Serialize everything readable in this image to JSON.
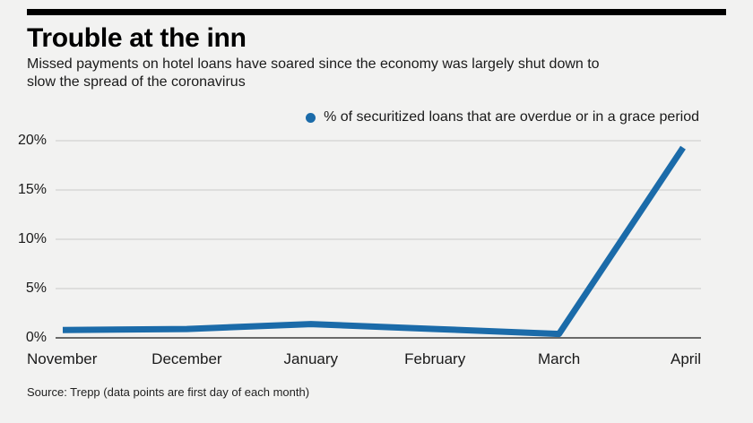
{
  "header": {
    "title": "Trouble at the inn",
    "subtitle_lines": [
      "Missed payments on hotel loans have soared since the economy was largely shut down to",
      "slow the spread of the coronavirus"
    ]
  },
  "legend": {
    "label": "% of securitized loans that are overdue or in a grace period",
    "dot_color": "#1b6ba9"
  },
  "chart_data": {
    "type": "line",
    "title": "Trouble at the inn",
    "series_name": "% of securitized loans that are overdue or in a grace period",
    "categories": [
      "November",
      "December",
      "January",
      "February",
      "March",
      "April"
    ],
    "values": [
      0.8,
      0.9,
      1.4,
      0.9,
      0.4,
      19.3
    ],
    "ylim": [
      0,
      20
    ],
    "y_ticks": [
      {
        "value": 0,
        "label": "0%"
      },
      {
        "value": 5,
        "label": "5%"
      },
      {
        "value": 10,
        "label": "10%"
      },
      {
        "value": 15,
        "label": "15%"
      },
      {
        "value": 20,
        "label": "20%"
      }
    ],
    "grid": true,
    "legend_position": "top",
    "line_color": "#1b6ba9",
    "grid_color": "#c9c9c9",
    "axis_color": "#3c3c3c"
  },
  "footer": {
    "source": "Source: Trepp (data points are first day of each month)"
  }
}
